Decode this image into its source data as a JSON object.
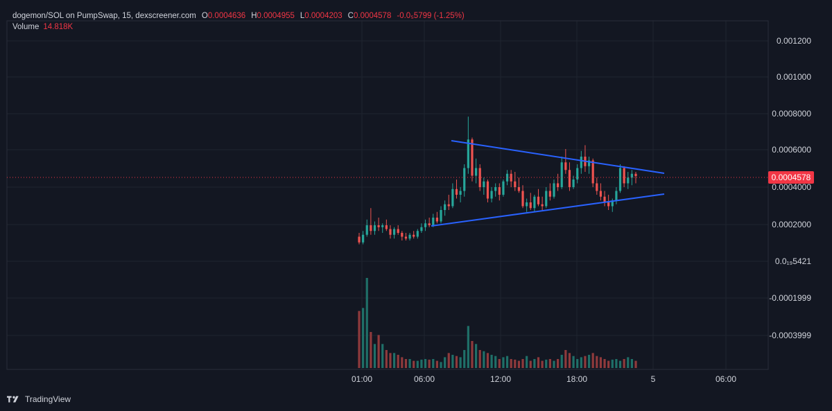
{
  "header": {
    "symbol": "dogemon/SOL on PumpSwap, 15, dexscreener.com",
    "o_label": "O",
    "o_value": "0.0004636",
    "h_label": "H",
    "h_value": "0.0004955",
    "l_label": "L",
    "l_value": "0.0004203",
    "c_label": "C",
    "c_value": "0.0004578",
    "change": "-0.0₅5799 (-1.25%)",
    "volume_label": "Volume",
    "volume_value": "14.818K"
  },
  "footer": {
    "brand": "TradingView"
  },
  "colors": {
    "background": "#131722",
    "up": "#26a69a",
    "down": "#ef5350",
    "up_vol": "#1f6f68",
    "down_vol": "#8f3a3c",
    "trendline": "#2962ff",
    "price_line": "#f23645",
    "grid": "#1f2430",
    "text": "#d1d4dc"
  },
  "chart_data": {
    "type": "candlestick",
    "price_axis_labels": [
      "0.001200",
      "0.001000",
      "0.0008000",
      "0.0006000",
      "0.0004000",
      "0.0002000",
      "0.0₁₉5421",
      "-0.0001999",
      "-0.0003999"
    ],
    "time_axis_labels": [
      "01:00",
      "06:00",
      "12:00",
      "18:00",
      "5",
      "06:00"
    ],
    "last_price": "0.0004578",
    "grid": true,
    "ohlc_approx": [
      [
        0.00014,
        0.00016,
        0.0001,
        0.00011
      ],
      [
        0.00011,
        0.00017,
        0.0001,
        0.00015
      ],
      [
        0.00015,
        0.00023,
        0.00014,
        0.0002
      ],
      [
        0.0002,
        0.00029,
        0.00015,
        0.00017
      ],
      [
        0.00017,
        0.00022,
        0.00015,
        0.0002
      ],
      [
        0.0002,
        0.00024,
        0.00017,
        0.00019
      ],
      [
        0.00019,
        0.00021,
        0.00016,
        0.0002
      ],
      [
        0.0002,
        0.00023,
        0.00017,
        0.00018
      ],
      [
        0.00018,
        0.0002,
        0.00013,
        0.00015
      ],
      [
        0.00015,
        0.00019,
        0.00013,
        0.00018
      ],
      [
        0.00018,
        0.0002,
        0.00015,
        0.00016
      ],
      [
        0.00016,
        0.00017,
        0.00012,
        0.00014
      ],
      [
        0.00014,
        0.00016,
        0.00012,
        0.00013
      ],
      [
        0.00013,
        0.00016,
        0.00012,
        0.00015
      ],
      [
        0.00015,
        0.00017,
        0.00013,
        0.00014
      ],
      [
        0.00014,
        0.00018,
        0.00013,
        0.00017
      ],
      [
        0.00017,
        0.00021,
        0.00016,
        0.00019
      ],
      [
        0.00019,
        0.00023,
        0.00017,
        0.00021
      ],
      [
        0.00021,
        0.00024,
        0.00019,
        0.0002
      ],
      [
        0.0002,
        0.00026,
        0.00019,
        0.00024
      ],
      [
        0.00024,
        0.00027,
        0.00021,
        0.00022
      ],
      [
        0.00022,
        0.0003,
        0.00021,
        0.00028
      ],
      [
        0.00028,
        0.00033,
        0.00025,
        0.00031
      ],
      [
        0.00031,
        0.00036,
        0.00028,
        0.0003
      ],
      [
        0.0003,
        0.00042,
        0.00029,
        0.00039
      ],
      [
        0.00039,
        0.00044,
        0.00034,
        0.00036
      ],
      [
        0.00036,
        0.0004,
        0.00032,
        0.00038
      ],
      [
        0.00038,
        0.00052,
        0.00035,
        0.0005
      ],
      [
        0.0005,
        0.00077,
        0.00047,
        0.00065
      ],
      [
        0.00065,
        0.00066,
        0.00043,
        0.00046
      ],
      [
        0.00046,
        0.00055,
        0.00042,
        0.0005
      ],
      [
        0.0005,
        0.00052,
        0.00038,
        0.0004
      ],
      [
        0.0004,
        0.00045,
        0.00036,
        0.00043
      ],
      [
        0.00043,
        0.00044,
        0.00032,
        0.00034
      ],
      [
        0.00034,
        0.0004,
        0.00032,
        0.00038
      ],
      [
        0.00038,
        0.00042,
        0.00035,
        0.0004
      ],
      [
        0.0004,
        0.00042,
        0.00033,
        0.00036
      ],
      [
        0.00036,
        0.00044,
        0.00035,
        0.00043
      ],
      [
        0.00043,
        0.00049,
        0.00041,
        0.00047
      ],
      [
        0.00047,
        0.00049,
        0.0004,
        0.00043
      ],
      [
        0.00043,
        0.00048,
        0.00038,
        0.0004
      ],
      [
        0.0004,
        0.00045,
        0.00037,
        0.00038
      ],
      [
        0.00038,
        0.00041,
        0.00029,
        0.0003
      ],
      [
        0.0003,
        0.00034,
        0.00027,
        0.00032
      ],
      [
        0.00032,
        0.00037,
        0.00028,
        0.00029
      ],
      [
        0.00029,
        0.00036,
        0.00027,
        0.00035
      ],
      [
        0.00035,
        0.00039,
        0.0003,
        0.00031
      ],
      [
        0.00031,
        0.00035,
        0.00028,
        0.0003
      ],
      [
        0.0003,
        0.0004,
        0.00029,
        0.00038
      ],
      [
        0.00038,
        0.00042,
        0.00033,
        0.00035
      ],
      [
        0.00035,
        0.00044,
        0.00034,
        0.00042
      ],
      [
        0.00042,
        0.00047,
        0.00038,
        0.0004
      ],
      [
        0.0004,
        0.00056,
        0.00039,
        0.00053
      ],
      [
        0.00053,
        0.0006,
        0.00047,
        0.00049
      ],
      [
        0.00049,
        0.00053,
        0.00038,
        0.0004
      ],
      [
        0.0004,
        0.00046,
        0.00039,
        0.00044
      ],
      [
        0.00044,
        0.00052,
        0.00042,
        0.0005
      ],
      [
        0.0005,
        0.00059,
        0.00047,
        0.00056
      ],
      [
        0.00056,
        0.00062,
        0.00048,
        0.00051
      ],
      [
        0.00051,
        0.00056,
        0.00047,
        0.00054
      ],
      [
        0.00054,
        0.00055,
        0.0004,
        0.00042
      ],
      [
        0.00042,
        0.00045,
        0.00036,
        0.00038
      ],
      [
        0.00038,
        0.00042,
        0.00033,
        0.00035
      ],
      [
        0.00035,
        0.00038,
        0.0003,
        0.00032
      ],
      [
        0.00032,
        0.00036,
        0.00028,
        0.0003
      ],
      [
        0.0003,
        0.00034,
        0.00027,
        0.00033
      ],
      [
        0.00033,
        0.0004,
        0.00031,
        0.00038
      ],
      [
        0.00038,
        0.00052,
        0.00037,
        0.0005
      ],
      [
        0.0005,
        0.00051,
        0.0004,
        0.00042
      ],
      [
        0.00042,
        0.00048,
        0.00039,
        0.00045
      ],
      [
        0.00045,
        0.00049,
        0.00041,
        0.00047
      ],
      [
        0.00047,
        0.00048,
        0.00042,
        0.000458
      ]
    ],
    "volume_approx": [
      95,
      100,
      150,
      60,
      40,
      55,
      40,
      30,
      25,
      25,
      22,
      18,
      15,
      15,
      12,
      12,
      14,
      15,
      14,
      15,
      12,
      10,
      18,
      25,
      22,
      20,
      18,
      30,
      70,
      45,
      40,
      30,
      28,
      25,
      22,
      20,
      15,
      18,
      20,
      15,
      14,
      12,
      15,
      20,
      12,
      15,
      18,
      12,
      14,
      15,
      12,
      15,
      22,
      30,
      25,
      20,
      15,
      18,
      20,
      22,
      25,
      20,
      18,
      15,
      12,
      14,
      15,
      12,
      15,
      18,
      15,
      12
    ],
    "trendlines": [
      {
        "name": "upper",
        "from_price": 0.00065,
        "to_price": 0.00047
      },
      {
        "name": "lower",
        "from_price": 0.00019,
        "to_price": 0.000365
      }
    ]
  }
}
